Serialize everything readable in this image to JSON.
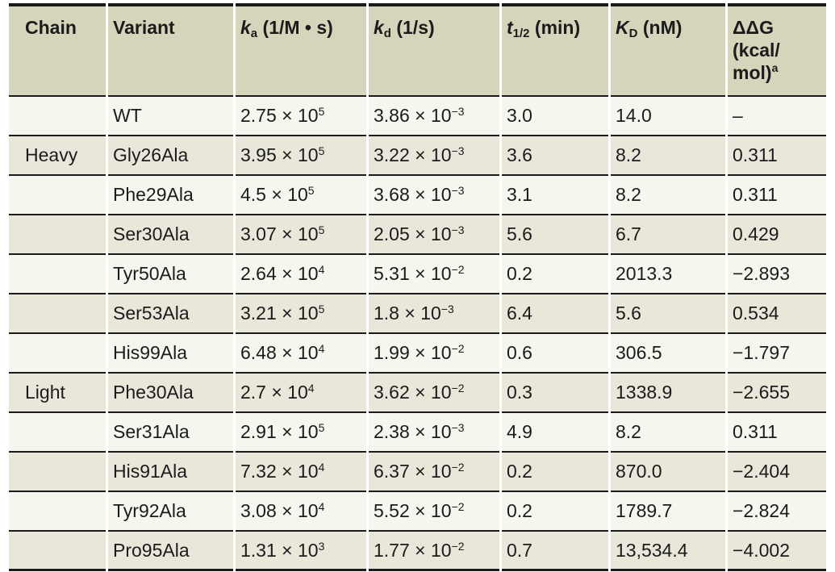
{
  "colors": {
    "header_bg": "#d6d4ba",
    "row_bg": "#f7f6ee",
    "row_alt_bg": "#e9e7da",
    "rule": "#1b1b1b",
    "text": "#1b1b1b"
  },
  "format": {
    "times": " × 10"
  },
  "columns": {
    "chain": {
      "label": "Chain"
    },
    "variant": {
      "label": "Variant"
    },
    "ka": {
      "symbol": "k",
      "sub": "a",
      "unit": " (1/M • s)"
    },
    "kd": {
      "symbol": "k",
      "sub": "d",
      "unit": " (1/s)"
    },
    "thalf": {
      "symbol": "t",
      "sub": "1/2",
      "unit": " (min)"
    },
    "kD": {
      "symbol": "K",
      "sub": "D",
      "unit": " (nM)"
    },
    "ddg": {
      "line1": "ΔΔG",
      "line2": "(kcal/",
      "line3": "mol)",
      "footnote": "a"
    }
  },
  "rows": [
    {
      "chain": "",
      "variant": "WT",
      "ka_coef": "2.75",
      "ka_exp": "5",
      "kd_coef": "3.86",
      "kd_exp": "−3",
      "t_half": "3.0",
      "kD": "14.0",
      "ddg": "–"
    },
    {
      "chain": "Heavy",
      "variant": "Gly26Ala",
      "ka_coef": "3.95",
      "ka_exp": "5",
      "kd_coef": "3.22",
      "kd_exp": "−3",
      "t_half": "3.6",
      "kD": "8.2",
      "ddg": "0.311"
    },
    {
      "chain": "",
      "variant": "Phe29Ala",
      "ka_coef": "4.5",
      "ka_exp": "5",
      "kd_coef": "3.68",
      "kd_exp": "−3",
      "t_half": "3.1",
      "kD": "8.2",
      "ddg": "0.311"
    },
    {
      "chain": "",
      "variant": "Ser30Ala",
      "ka_coef": "3.07",
      "ka_exp": "5",
      "kd_coef": "2.05",
      "kd_exp": "−3",
      "t_half": "5.6",
      "kD": "6.7",
      "ddg": "0.429"
    },
    {
      "chain": "",
      "variant": "Tyr50Ala",
      "ka_coef": "2.64",
      "ka_exp": "4",
      "kd_coef": "5.31",
      "kd_exp": "−2",
      "t_half": "0.2",
      "kD": "2013.3",
      "ddg": "−2.893"
    },
    {
      "chain": "",
      "variant": "Ser53Ala",
      "ka_coef": "3.21",
      "ka_exp": "5",
      "kd_coef": "1.8",
      "kd_exp": "−3",
      "t_half": "6.4",
      "kD": "5.6",
      "ddg": "0.534"
    },
    {
      "chain": "",
      "variant": "His99Ala",
      "ka_coef": "6.48",
      "ka_exp": "4",
      "kd_coef": "1.99",
      "kd_exp": "−2",
      "t_half": "0.6",
      "kD": "306.5",
      "ddg": "−1.797"
    },
    {
      "chain": "Light",
      "variant": "Phe30Ala",
      "ka_coef": "2.7",
      "ka_exp": "4",
      "kd_coef": "3.62",
      "kd_exp": "−2",
      "t_half": "0.3",
      "kD": "1338.9",
      "ddg": "−2.655"
    },
    {
      "chain": "",
      "variant": "Ser31Ala",
      "ka_coef": "2.91",
      "ka_exp": "5",
      "kd_coef": "2.38",
      "kd_exp": "−3",
      "t_half": "4.9",
      "kD": "8.2",
      "ddg": "0.311"
    },
    {
      "chain": "",
      "variant": "His91Ala",
      "ka_coef": "7.32",
      "ka_exp": "4",
      "kd_coef": "6.37",
      "kd_exp": "−2",
      "t_half": "0.2",
      "kD": "870.0",
      "ddg": "−2.404"
    },
    {
      "chain": "",
      "variant": "Tyr92Ala",
      "ka_coef": "3.08",
      "ka_exp": "4",
      "kd_coef": "5.52",
      "kd_exp": "−2",
      "t_half": "0.2",
      "kD": "1789.7",
      "ddg": "−2.824"
    },
    {
      "chain": "",
      "variant": "Pro95Ala",
      "ka_coef": "1.31",
      "ka_exp": "3",
      "kd_coef": "1.77",
      "kd_exp": "−2",
      "t_half": "0.7",
      "kD": "13,534.4",
      "ddg": "−4.002"
    }
  ]
}
